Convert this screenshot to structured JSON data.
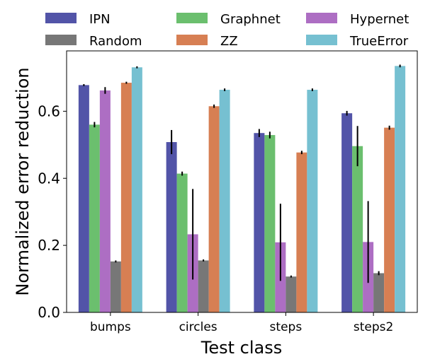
{
  "chart_data": {
    "type": "bar",
    "title": "",
    "xlabel": "Test class",
    "ylabel": "Normalized error reduction",
    "ylim": [
      0,
      0.78
    ],
    "yticks": [
      0.0,
      0.2,
      0.4,
      0.6
    ],
    "ytick_labels": [
      "0.0",
      "0.2",
      "0.4",
      "0.6"
    ],
    "categories": [
      "bumps",
      "circles",
      "steps",
      "steps2"
    ],
    "legend": {
      "placement": "top, above plot",
      "columns": 3
    },
    "series": [
      {
        "name": "IPN",
        "color": "#5254a8",
        "values": [
          0.678,
          0.508,
          0.535,
          0.594
        ],
        "errors": [
          0.003,
          0.036,
          0.012,
          0.007
        ]
      },
      {
        "name": "Graphnet",
        "color": "#6bbf6e",
        "values": [
          0.56,
          0.414,
          0.529,
          0.496
        ],
        "errors": [
          0.008,
          0.006,
          0.01,
          0.06
        ]
      },
      {
        "name": "Hypernet",
        "color": "#ad6ec3",
        "values": [
          0.662,
          0.233,
          0.209,
          0.21
        ],
        "errors": [
          0.01,
          0.135,
          0.115,
          0.122
        ]
      },
      {
        "name": "Random",
        "color": "#777777",
        "values": [
          0.152,
          0.155,
          0.107,
          0.117
        ],
        "errors": [
          0.003,
          0.003,
          0.003,
          0.006
        ]
      },
      {
        "name": "ZZ",
        "color": "#d77f53",
        "values": [
          0.685,
          0.615,
          0.477,
          0.551
        ],
        "errors": [
          0.003,
          0.005,
          0.005,
          0.006
        ]
      },
      {
        "name": "TrueError",
        "color": "#76c0d1",
        "values": [
          0.731,
          0.664,
          0.664,
          0.735
        ],
        "errors": [
          0.003,
          0.004,
          0.004,
          0.004
        ]
      }
    ]
  }
}
